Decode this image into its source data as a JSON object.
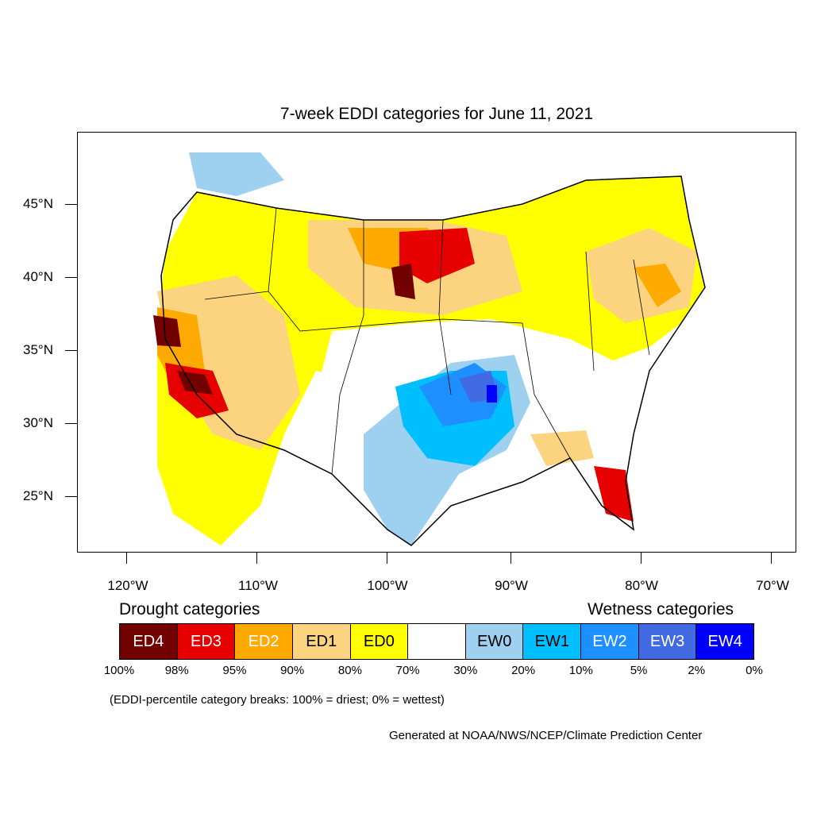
{
  "title": "7-week EDDI categories for June 11, 2021",
  "lat_labels": [
    "45°N",
    "40°N",
    "35°N",
    "30°N",
    "25°N"
  ],
  "lon_labels": [
    "120°W",
    "110°W",
    "100°W",
    "90°W",
    "80°W",
    "70°W"
  ],
  "legend": {
    "drought_title": "Drought categories",
    "wetness_title": "Wetness categories",
    "categories": [
      {
        "label": "ED4",
        "color": "#730000",
        "text_color": "#ffffff"
      },
      {
        "label": "ED3",
        "color": "#e60000",
        "text_color": "#ffffff"
      },
      {
        "label": "ED2",
        "color": "#ffaa00",
        "text_color": "#ffffff"
      },
      {
        "label": "ED1",
        "color": "#fcd37f",
        "text_color": "#000000"
      },
      {
        "label": "ED0",
        "color": "#ffff00",
        "text_color": "#000000"
      },
      {
        "label": "",
        "color": "#ffffff",
        "text_color": "#000000"
      },
      {
        "label": "EW0",
        "color": "#9ed0f0",
        "text_color": "#000000"
      },
      {
        "label": "EW1",
        "color": "#00bfff",
        "text_color": "#000000"
      },
      {
        "label": "EW2",
        "color": "#1e8fff",
        "text_color": "#ffffff"
      },
      {
        "label": "EW3",
        "color": "#4169e1",
        "text_color": "#ffffff"
      },
      {
        "label": "EW4",
        "color": "#0000ff",
        "text_color": "#ffffff"
      }
    ],
    "percentiles": [
      "100%",
      "98%",
      "95%",
      "90%",
      "80%",
      "70%",
      "30%",
      "20%",
      "10%",
      "5%",
      "2%",
      "0%"
    ]
  },
  "note": "(EDDI-percentile category breaks: 100% = driest; 0% = wettest)",
  "credit": "Generated at NOAA/NWS/NCEP/Climate Prediction Center"
}
